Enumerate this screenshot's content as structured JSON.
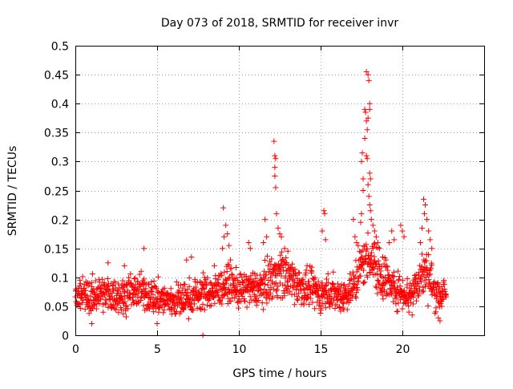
{
  "chart_data": {
    "type": "scatter",
    "title": "Day 073 of 2018, SRMTID for receiver invr",
    "xlabel": "GPS time / hours",
    "ylabel": "SRMTID / TECUs",
    "xlim": [
      0,
      25
    ],
    "ylim": [
      0,
      0.5
    ],
    "xticks": [
      0,
      5,
      10,
      15,
      20
    ],
    "xtick_labels": [
      "0",
      "5",
      "10",
      "15",
      "20"
    ],
    "yticks": [
      0,
      0.05,
      0.1,
      0.15,
      0.2,
      0.25,
      0.3,
      0.35,
      0.4,
      0.45,
      0.5
    ],
    "ytick_labels": [
      "0",
      "0.05",
      "0.1",
      "0.15",
      "0.2",
      "0.25",
      "0.3",
      "0.35",
      "0.4",
      "0.45",
      "0.5"
    ],
    "grid": true,
    "marker": "plus",
    "series": [
      {
        "name": "SRMTID",
        "color": "#ff0000",
        "baseline": [
          [
            0.0,
            0.075
          ],
          [
            0.5,
            0.07
          ],
          [
            1.0,
            0.065
          ],
          [
            1.5,
            0.075
          ],
          [
            2.0,
            0.07
          ],
          [
            2.5,
            0.068
          ],
          [
            3.0,
            0.07
          ],
          [
            3.5,
            0.075
          ],
          [
            4.0,
            0.075
          ],
          [
            4.5,
            0.07
          ],
          [
            5.0,
            0.065
          ],
          [
            5.5,
            0.06
          ],
          [
            6.0,
            0.06
          ],
          [
            6.5,
            0.06
          ],
          [
            7.0,
            0.065
          ],
          [
            7.5,
            0.07
          ],
          [
            8.0,
            0.075
          ],
          [
            8.5,
            0.075
          ],
          [
            9.0,
            0.085
          ],
          [
            9.5,
            0.09
          ],
          [
            10.0,
            0.075
          ],
          [
            10.5,
            0.08
          ],
          [
            11.0,
            0.08
          ],
          [
            11.5,
            0.085
          ],
          [
            12.0,
            0.1
          ],
          [
            12.5,
            0.11
          ],
          [
            13.0,
            0.1
          ],
          [
            13.5,
            0.09
          ],
          [
            14.0,
            0.08
          ],
          [
            14.5,
            0.08
          ],
          [
            15.0,
            0.07
          ],
          [
            15.5,
            0.075
          ],
          [
            16.0,
            0.07
          ],
          [
            16.5,
            0.07
          ],
          [
            17.0,
            0.085
          ],
          [
            17.5,
            0.12
          ],
          [
            18.0,
            0.14
          ],
          [
            18.5,
            0.11
          ],
          [
            19.0,
            0.095
          ],
          [
            19.5,
            0.08
          ],
          [
            20.0,
            0.075
          ],
          [
            20.5,
            0.07
          ],
          [
            21.0,
            0.1
          ],
          [
            21.5,
            0.11
          ],
          [
            22.0,
            0.075
          ],
          [
            22.5,
            0.07
          ]
        ],
        "x_range": [
          0.0,
          22.7
        ],
        "spread": 0.028,
        "points": [
          [
            7.8,
            0.0
          ],
          [
            9.05,
            0.22
          ],
          [
            9.2,
            0.19
          ],
          [
            9.3,
            0.175
          ],
          [
            9.1,
            0.17
          ],
          [
            9.4,
            0.155
          ],
          [
            9.0,
            0.15
          ],
          [
            10.6,
            0.16
          ],
          [
            10.7,
            0.15
          ],
          [
            11.6,
            0.2
          ],
          [
            11.7,
            0.17
          ],
          [
            11.5,
            0.16
          ],
          [
            12.15,
            0.335
          ],
          [
            12.2,
            0.31
          ],
          [
            12.25,
            0.305
          ],
          [
            12.2,
            0.29
          ],
          [
            12.2,
            0.275
          ],
          [
            12.25,
            0.255
          ],
          [
            12.3,
            0.21
          ],
          [
            12.4,
            0.185
          ],
          [
            12.5,
            0.175
          ],
          [
            12.6,
            0.17
          ],
          [
            12.8,
            0.15
          ],
          [
            13.0,
            0.145
          ],
          [
            15.2,
            0.215
          ],
          [
            15.25,
            0.21
          ],
          [
            15.1,
            0.18
          ],
          [
            15.3,
            0.165
          ],
          [
            17.0,
            0.2
          ],
          [
            17.1,
            0.17
          ],
          [
            17.2,
            0.16
          ],
          [
            17.3,
            0.155
          ],
          [
            17.5,
            0.3
          ],
          [
            17.55,
            0.315
          ],
          [
            17.6,
            0.27
          ],
          [
            17.6,
            0.25
          ],
          [
            17.5,
            0.21
          ],
          [
            17.45,
            0.195
          ],
          [
            17.7,
            0.39
          ],
          [
            17.75,
            0.385
          ],
          [
            17.8,
            0.37
          ],
          [
            17.85,
            0.355
          ],
          [
            17.7,
            0.34
          ],
          [
            17.8,
            0.455
          ],
          [
            17.9,
            0.45
          ],
          [
            17.95,
            0.44
          ],
          [
            18.0,
            0.4
          ],
          [
            18.0,
            0.39
          ],
          [
            17.9,
            0.375
          ],
          [
            17.8,
            0.31
          ],
          [
            17.85,
            0.305
          ],
          [
            18.0,
            0.28
          ],
          [
            18.05,
            0.27
          ],
          [
            17.9,
            0.26
          ],
          [
            17.95,
            0.24
          ],
          [
            18.0,
            0.225
          ],
          [
            18.05,
            0.215
          ],
          [
            18.1,
            0.2
          ],
          [
            18.2,
            0.19
          ],
          [
            18.3,
            0.18
          ],
          [
            18.4,
            0.17
          ],
          [
            18.5,
            0.16
          ],
          [
            18.6,
            0.15
          ],
          [
            18.8,
            0.135
          ],
          [
            19.0,
            0.13
          ],
          [
            19.35,
            0.18
          ],
          [
            19.2,
            0.16
          ],
          [
            19.5,
            0.165
          ],
          [
            19.9,
            0.19
          ],
          [
            20.0,
            0.18
          ],
          [
            20.1,
            0.17
          ],
          [
            21.3,
            0.235
          ],
          [
            21.4,
            0.225
          ],
          [
            21.35,
            0.21
          ],
          [
            21.5,
            0.2
          ],
          [
            21.2,
            0.185
          ],
          [
            21.6,
            0.18
          ],
          [
            21.7,
            0.165
          ],
          [
            21.1,
            0.16
          ],
          [
            21.8,
            0.15
          ],
          [
            20.4,
            0.04
          ],
          [
            20.6,
            0.035
          ],
          [
            22.2,
            0.03
          ],
          [
            22.3,
            0.025
          ],
          [
            5.0,
            0.02
          ],
          [
            1.0,
            0.02
          ],
          [
            4.2,
            0.15
          ],
          [
            3.0,
            0.12
          ],
          [
            6.8,
            0.13
          ],
          [
            7.1,
            0.135
          ],
          [
            8.5,
            0.12
          ],
          [
            2.0,
            0.125
          ]
        ]
      }
    ]
  }
}
